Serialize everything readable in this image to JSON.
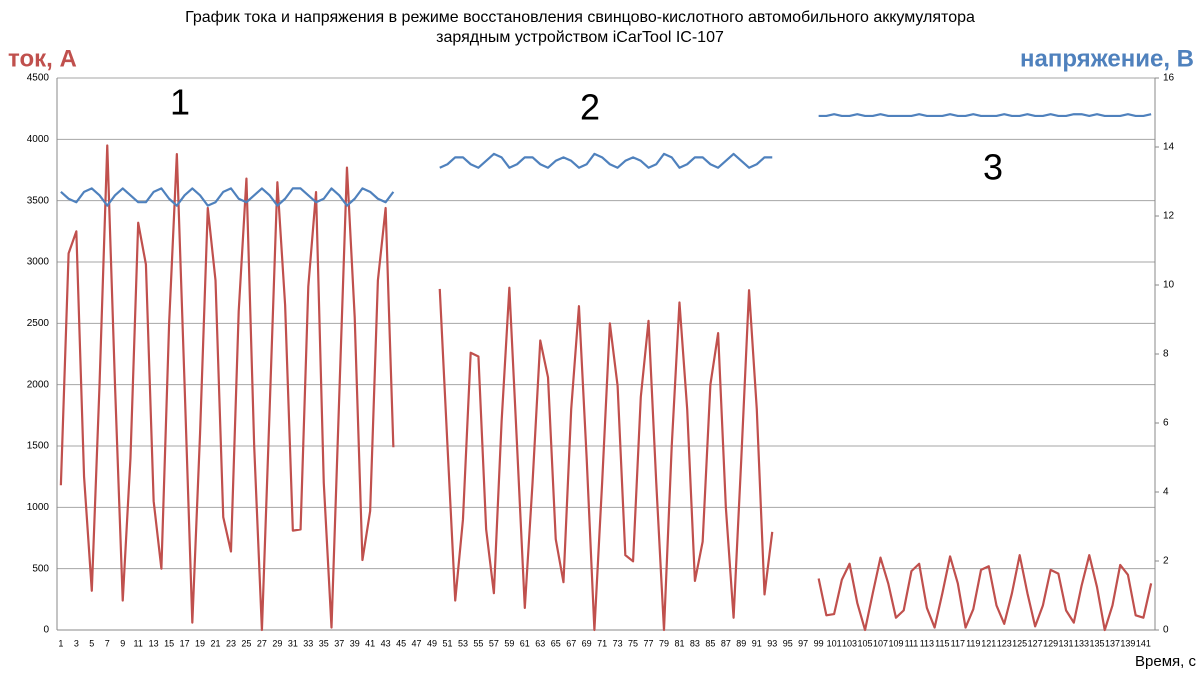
{
  "chart_data": {
    "type": "line",
    "title": [
      "График тока и напряжения в режиме восстановления свинцово-кислотного автомобильного аккумулятора",
      "зарядным устройством iCarTool IC-107"
    ],
    "y_label": "ток, А",
    "y2_label": "напряжение, В",
    "x_label": "Время, с",
    "annotations": [
      "1",
      "2",
      "3"
    ],
    "categories": [
      "1",
      null,
      "3",
      null,
      "5",
      null,
      "7",
      null,
      "9",
      null,
      "11",
      null,
      "13",
      null,
      "15",
      null,
      "17",
      null,
      "19",
      null,
      "21",
      null,
      "23",
      null,
      "25",
      null,
      "27",
      null,
      "29",
      null,
      "31",
      null,
      "33",
      null,
      "35",
      null,
      "37",
      null,
      "39",
      null,
      "41",
      null,
      "43",
      null,
      "45",
      null,
      "47",
      null,
      "49",
      null,
      "51",
      null,
      "53",
      null,
      "55",
      null,
      "57",
      null,
      "59",
      null,
      "61",
      null,
      "63",
      null,
      "65",
      null,
      "67",
      null,
      "69",
      null,
      "71",
      null,
      "73",
      null,
      "75",
      null,
      "77",
      null,
      "79",
      null,
      "81",
      null,
      "83",
      null,
      "85",
      null,
      "87",
      null,
      "89",
      null,
      "91",
      null,
      "93",
      null,
      "95",
      null,
      "97",
      null,
      "99",
      null,
      "101",
      null,
      "103",
      null,
      "105",
      null,
      "107",
      null,
      "109",
      null,
      "111",
      null,
      "113",
      null,
      "115",
      null,
      "117",
      null,
      "119",
      null,
      "121",
      null,
      "123",
      null,
      "125",
      null,
      "127",
      null,
      "129",
      null,
      "131",
      null,
      "133",
      null,
      "135",
      null,
      "137",
      null,
      "139",
      null,
      "141",
      null
    ],
    "series": [
      {
        "color": "#c0504d",
        "values": [
          1180,
          3070,
          3250,
          1250,
          320,
          2000,
          3950,
          2000,
          240,
          1400,
          3320,
          2980,
          1050,
          500,
          2500,
          3880,
          2000,
          60,
          1600,
          3440,
          2850,
          920,
          640,
          2600,
          3680,
          1500,
          0,
          1800,
          3650,
          2650,
          810,
          820,
          2800,
          3570,
          1200,
          20,
          1900,
          3770,
          2550,
          570,
          970,
          2850,
          3440,
          1490,
          null,
          null,
          null,
          null,
          null,
          2780,
          1500,
          240,
          900,
          2260,
          2230,
          820,
          300,
          1700,
          2790,
          1500,
          180,
          1200,
          2360,
          2060,
          740,
          390,
          1800,
          2640,
          1400,
          0,
          1200,
          2500,
          1990,
          610,
          560,
          1900,
          2520,
          1200,
          0,
          1500,
          2670,
          1800,
          400,
          720,
          2000,
          2420,
          1000,
          100,
          1400,
          2770,
          1800,
          290,
          800,
          null,
          null,
          null,
          null,
          null,
          420,
          120,
          130,
          410,
          540,
          220,
          0,
          300,
          590,
          380,
          100,
          160,
          480,
          540,
          180,
          20,
          300,
          600,
          380,
          20,
          170,
          490,
          520,
          200,
          50,
          300,
          610,
          300,
          30,
          200,
          490,
          460,
          160,
          60,
          360,
          610,
          350,
          0,
          200,
          530,
          450,
          120,
          100,
          380
        ]
      },
      {
        "color": "#4f81bd",
        "axis": "y2",
        "values": [
          12.7,
          12.5,
          12.4,
          12.7,
          12.8,
          12.6,
          12.3,
          12.6,
          12.8,
          12.6,
          12.4,
          12.4,
          12.7,
          12.8,
          12.5,
          12.3,
          12.6,
          12.8,
          12.6,
          12.3,
          12.4,
          12.7,
          12.8,
          12.5,
          12.4,
          12.6,
          12.8,
          12.6,
          12.3,
          12.5,
          12.8,
          12.8,
          12.6,
          12.4,
          12.5,
          12.8,
          12.6,
          12.3,
          12.5,
          12.8,
          12.7,
          12.5,
          12.4,
          12.7,
          null,
          null,
          null,
          null,
          null,
          13.4,
          13.5,
          13.7,
          13.7,
          13.5,
          13.4,
          13.6,
          13.8,
          13.7,
          13.4,
          13.5,
          13.7,
          13.7,
          13.5,
          13.4,
          13.6,
          13.7,
          13.6,
          13.4,
          13.5,
          13.8,
          13.7,
          13.5,
          13.4,
          13.6,
          13.7,
          13.6,
          13.4,
          13.5,
          13.8,
          13.7,
          13.4,
          13.5,
          13.7,
          13.7,
          13.5,
          13.4,
          13.6,
          13.8,
          13.6,
          13.4,
          13.5,
          13.7,
          13.7,
          null,
          null,
          null,
          null,
          null,
          14.9,
          14.9,
          14.95,
          14.9,
          14.9,
          14.95,
          14.9,
          14.9,
          14.95,
          14.9,
          14.9,
          14.9,
          14.9,
          14.95,
          14.9,
          14.9,
          14.9,
          14.95,
          14.9,
          14.9,
          14.95,
          14.9,
          14.9,
          14.9,
          14.95,
          14.9,
          14.9,
          14.95,
          14.9,
          14.9,
          14.95,
          14.9,
          14.9,
          14.95,
          14.95,
          14.9,
          14.95,
          14.9,
          14.9,
          14.9,
          14.95,
          14.9,
          14.9,
          14.95
        ]
      }
    ],
    "ylim": [
      0,
      4500
    ],
    "yticks": [
      0,
      500,
      1000,
      1500,
      2000,
      2500,
      3000,
      3500,
      4000,
      4500
    ],
    "y2lim": [
      0,
      16
    ],
    "y2ticks": [
      0,
      2,
      4,
      6,
      8,
      10,
      12,
      14,
      16
    ],
    "grid": true
  }
}
